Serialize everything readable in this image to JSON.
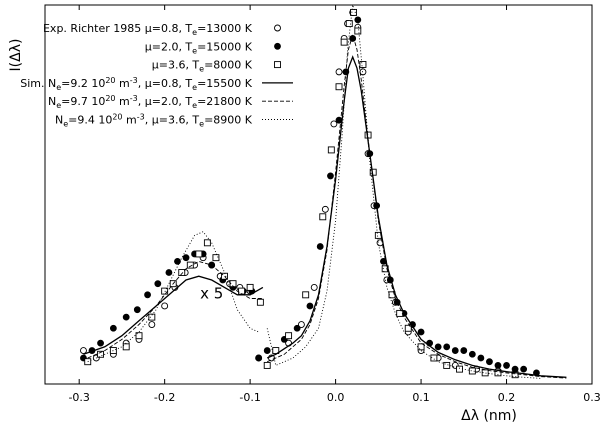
{
  "chart_data": {
    "type": "scatter",
    "xlabel": "Δλ (nm)",
    "ylabel": "I(Δλ)",
    "xlim": [
      -0.34,
      0.3
    ],
    "ylim": [
      0,
      1.02
    ],
    "xticks": [
      -0.3,
      -0.2,
      -0.1,
      0.0,
      0.1,
      0.2,
      0.3
    ],
    "xtick_labels": [
      "-0.3",
      "-0.2",
      "-0.1",
      "0.0",
      "0.1",
      "0.2",
      "0.3"
    ],
    "yticks": [],
    "grid": false,
    "legend_position": "top-left",
    "annotations": [
      {
        "text": "x 5",
        "x": -0.145,
        "y": 0.23
      }
    ],
    "series": [
      {
        "name": "Exp. Richter 1985 μ=0.8, T",
        "name_sub": "e",
        "name_tail": "=13000 K",
        "kind": "points",
        "marker": "open-circle",
        "x": [
          -0.295,
          -0.28,
          -0.26,
          -0.245,
          -0.23,
          -0.215,
          -0.2,
          -0.188,
          -0.176,
          -0.165,
          -0.155,
          -0.145,
          -0.135,
          -0.124,
          -0.112,
          -0.1,
          -0.09,
          -0.075,
          -0.055,
          -0.04,
          -0.025,
          -0.012,
          -0.002,
          0.004,
          0.01,
          0.014,
          0.02,
          0.026,
          0.032,
          0.038,
          0.045,
          0.052,
          0.06,
          0.07,
          0.085,
          0.1,
          0.12,
          0.14,
          0.165,
          0.19
        ],
        "y": [
          0.09,
          0.07,
          0.08,
          0.11,
          0.12,
          0.16,
          0.21,
          0.26,
          0.3,
          0.32,
          0.34,
          0.32,
          0.29,
          0.27,
          0.26,
          0.25,
          0.07,
          0.07,
          0.11,
          0.16,
          0.26,
          0.47,
          0.7,
          0.84,
          0.93,
          0.97,
          1.0,
          0.96,
          0.84,
          0.62,
          0.48,
          0.38,
          0.28,
          0.22,
          0.14,
          0.09,
          0.07,
          0.05,
          0.04,
          0.035
        ]
      },
      {
        "name": "μ=2.0, T",
        "name_sub": "e",
        "name_tail": "=15000 K",
        "kind": "points",
        "marker": "filled-circle",
        "x": [
          -0.295,
          -0.285,
          -0.275,
          -0.26,
          -0.245,
          -0.232,
          -0.22,
          -0.208,
          -0.195,
          -0.185,
          -0.175,
          -0.165,
          -0.155,
          -0.145,
          -0.132,
          -0.12,
          -0.108,
          -0.098,
          -0.09,
          -0.08,
          -0.06,
          -0.045,
          -0.03,
          -0.018,
          -0.006,
          0.004,
          0.012,
          0.02,
          0.026,
          0.032,
          0.04,
          0.048,
          0.056,
          0.064,
          0.072,
          0.08,
          0.09,
          0.1,
          0.11,
          0.12,
          0.13,
          0.14,
          0.15,
          0.16,
          0.17,
          0.18,
          0.19,
          0.2,
          0.21,
          0.22,
          0.235
        ],
        "y": [
          0.07,
          0.09,
          0.11,
          0.15,
          0.18,
          0.2,
          0.24,
          0.27,
          0.3,
          0.33,
          0.34,
          0.35,
          0.35,
          0.32,
          0.28,
          0.26,
          0.25,
          0.25,
          0.07,
          0.09,
          0.12,
          0.15,
          0.21,
          0.37,
          0.56,
          0.71,
          0.84,
          0.93,
          0.98,
          0.86,
          0.62,
          0.48,
          0.33,
          0.28,
          0.22,
          0.19,
          0.16,
          0.14,
          0.11,
          0.1,
          0.1,
          0.09,
          0.09,
          0.08,
          0.07,
          0.06,
          0.05,
          0.05,
          0.04,
          0.04,
          0.03
        ]
      },
      {
        "name": "μ=3.6, T",
        "name_sub": "e",
        "name_tail": "=8000 K",
        "kind": "points",
        "marker": "open-square",
        "x": [
          -0.29,
          -0.275,
          -0.26,
          -0.245,
          -0.23,
          -0.215,
          -0.2,
          -0.19,
          -0.18,
          -0.17,
          -0.16,
          -0.15,
          -0.14,
          -0.13,
          -0.12,
          -0.11,
          -0.1,
          -0.088,
          -0.08,
          -0.07,
          -0.055,
          -0.035,
          -0.015,
          -0.005,
          0.004,
          0.01,
          0.016,
          0.021,
          0.026,
          0.032,
          0.038,
          0.044,
          0.05,
          0.058,
          0.066,
          0.075,
          0.085,
          0.1,
          0.115,
          0.13,
          0.145,
          0.16,
          0.175,
          0.19,
          0.21
        ],
        "y": [
          0.06,
          0.08,
          0.09,
          0.1,
          0.13,
          0.18,
          0.25,
          0.27,
          0.3,
          0.32,
          0.35,
          0.38,
          0.34,
          0.29,
          0.27,
          0.25,
          0.26,
          0.22,
          0.05,
          0.09,
          0.13,
          0.24,
          0.45,
          0.63,
          0.8,
          0.92,
          0.97,
          1.0,
          0.95,
          0.86,
          0.67,
          0.57,
          0.4,
          0.31,
          0.24,
          0.19,
          0.15,
          0.1,
          0.07,
          0.05,
          0.04,
          0.035,
          0.03,
          0.03,
          0.025
        ]
      },
      {
        "name": "Sim. N",
        "name_sub": "e",
        "name_tail": "=9.2 10",
        "name_sup": "20",
        "name_tail2": " m",
        "name_sup2": "-3",
        "name_tail3": ", μ=0.8, T",
        "name_sub2": "e",
        "name_tail4": "=15500 K",
        "kind": "line",
        "style": "solid",
        "x": [
          -0.295,
          -0.27,
          -0.25,
          -0.23,
          -0.21,
          -0.19,
          -0.175,
          -0.16,
          -0.145,
          -0.13,
          -0.115,
          -0.1,
          -0.085,
          -0.08,
          -0.07,
          -0.05,
          -0.04,
          -0.03,
          -0.02,
          -0.01,
          0.0,
          0.01,
          0.015,
          0.02,
          0.025,
          0.03,
          0.04,
          0.05,
          0.06,
          0.07,
          0.08,
          0.1,
          0.12,
          0.14,
          0.16,
          0.18,
          0.2,
          0.22,
          0.24,
          0.27
        ],
        "y": [
          0.08,
          0.1,
          0.13,
          0.17,
          0.21,
          0.25,
          0.28,
          0.29,
          0.28,
          0.26,
          0.24,
          0.24,
          0.26,
          0.07,
          0.08,
          0.11,
          0.13,
          0.17,
          0.24,
          0.37,
          0.55,
          0.76,
          0.85,
          0.88,
          0.85,
          0.79,
          0.62,
          0.45,
          0.32,
          0.24,
          0.19,
          0.12,
          0.085,
          0.065,
          0.05,
          0.04,
          0.033,
          0.028,
          0.022,
          0.018
        ]
      },
      {
        "name": "N",
        "name_sub": "e",
        "name_tail": "=9.7 10",
        "name_sup": "20",
        "name_tail2": " m",
        "name_sup2": "-3",
        "name_tail3": ", μ=2.0, T",
        "name_sub2": "e",
        "name_tail4": "=21800 K",
        "kind": "line",
        "style": "dashed",
        "x": [
          -0.29,
          -0.27,
          -0.25,
          -0.23,
          -0.21,
          -0.19,
          -0.175,
          -0.16,
          -0.145,
          -0.13,
          -0.115,
          -0.1,
          -0.085,
          -0.08,
          -0.06,
          -0.04,
          -0.03,
          -0.02,
          -0.01,
          0.0,
          0.01,
          0.015,
          0.02,
          0.025,
          0.03,
          0.04,
          0.05,
          0.06,
          0.07,
          0.08,
          0.1,
          0.12,
          0.14,
          0.16,
          0.18,
          0.2,
          0.22,
          0.24,
          0.27
        ],
        "y": [
          0.07,
          0.09,
          0.12,
          0.16,
          0.21,
          0.27,
          0.31,
          0.33,
          0.32,
          0.29,
          0.25,
          0.23,
          0.23,
          0.06,
          0.08,
          0.12,
          0.16,
          0.23,
          0.36,
          0.57,
          0.8,
          0.9,
          0.94,
          0.9,
          0.82,
          0.62,
          0.44,
          0.31,
          0.23,
          0.18,
          0.11,
          0.08,
          0.06,
          0.045,
          0.036,
          0.03,
          0.025,
          0.02,
          0.016
        ]
      },
      {
        "name": "N",
        "name_sub": "e",
        "name_tail": "=9.4 10",
        "name_sup": "20",
        "name_tail2": " m",
        "name_sup2": "-3",
        "name_tail3": ", μ=3.6, T",
        "name_sub2": "e",
        "name_tail4": "=8900 K",
        "kind": "line",
        "style": "dotted",
        "x": [
          -0.29,
          -0.27,
          -0.25,
          -0.23,
          -0.21,
          -0.195,
          -0.18,
          -0.165,
          -0.155,
          -0.145,
          -0.13,
          -0.115,
          -0.1,
          -0.09,
          -0.08,
          -0.07,
          -0.05,
          -0.035,
          -0.02,
          -0.01,
          0.0,
          0.008,
          0.014,
          0.02,
          0.026,
          0.032,
          0.04,
          0.05,
          0.06,
          0.07,
          0.08,
          0.1,
          0.12,
          0.14,
          0.16,
          0.18,
          0.2,
          0.22,
          0.24
        ],
        "y": [
          0.06,
          0.08,
          0.1,
          0.14,
          0.2,
          0.27,
          0.34,
          0.4,
          0.41,
          0.38,
          0.3,
          0.2,
          0.15,
          0.14,
          0.15,
          0.05,
          0.07,
          0.1,
          0.15,
          0.25,
          0.44,
          0.68,
          0.9,
          1.02,
          0.98,
          0.83,
          0.6,
          0.38,
          0.26,
          0.19,
          0.14,
          0.09,
          0.06,
          0.045,
          0.035,
          0.028,
          0.022,
          0.018,
          0.015
        ]
      }
    ]
  }
}
